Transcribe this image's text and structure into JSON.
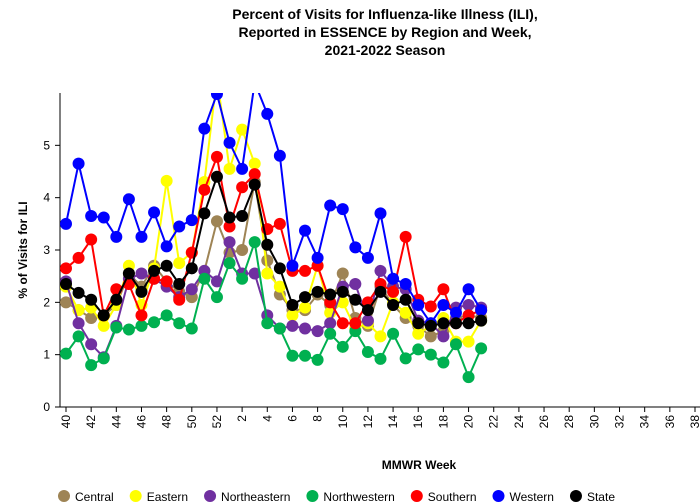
{
  "chart_data": {
    "type": "line",
    "title": [
      "Percent of Visits for Influenza-like Illness (ILI),",
      "Reported in ESSENCE by Region and Week,",
      "2021-2022 Season"
    ],
    "xlabel": "MMWR Week",
    "ylabel": "% of Visits for ILI",
    "categories": [
      "40",
      null,
      "42",
      null,
      "44",
      null,
      "46",
      null,
      "48",
      null,
      "50",
      null,
      "52",
      null,
      "2",
      null,
      "4",
      null,
      "6",
      null,
      "8",
      null,
      "10",
      null,
      "12",
      null,
      "14",
      null,
      "16",
      null,
      "18",
      null,
      "20",
      null,
      "22",
      null,
      "24",
      null,
      "26",
      null,
      "28",
      null,
      "30",
      null,
      "32",
      null,
      "34",
      null,
      "36",
      null,
      "38"
    ],
    "ylim": [
      0,
      6
    ],
    "yticks": [
      0,
      1,
      2,
      3,
      4,
      5
    ],
    "series": [
      {
        "name": "Central",
        "color": "#9e8455",
        "values": [
          2.0,
          1.85,
          1.7,
          1.75,
          1.95,
          2.55,
          2.3,
          2.7,
          2.4,
          2.2,
          2.1,
          2.6,
          3.55,
          2.95,
          3.0,
          4.3,
          2.8,
          2.15,
          1.85,
          1.85,
          2.15,
          1.95,
          2.55,
          1.7,
          1.55,
          2.3,
          1.95,
          1.7,
          1.55,
          1.35,
          1.45,
          1.7,
          1.75,
          1.7,
          null,
          null,
          null,
          null,
          null,
          null,
          null,
          null,
          null,
          null,
          null,
          null,
          null,
          null,
          null,
          null,
          null
        ]
      },
      {
        "name": "Eastern",
        "color": "#ffff00",
        "values": [
          2.3,
          1.85,
          1.9,
          1.55,
          1.95,
          2.7,
          1.95,
          2.65,
          4.32,
          2.75,
          2.95,
          4.3,
          6.3,
          4.55,
          5.3,
          4.65,
          2.55,
          2.3,
          1.75,
          1.9,
          2.7,
          1.8,
          2.0,
          1.5,
          1.6,
          1.35,
          2.0,
          1.8,
          1.4,
          1.55,
          1.7,
          1.25,
          1.25,
          1.65,
          null,
          null,
          null,
          null,
          null,
          null,
          null,
          null,
          null,
          null,
          null,
          null,
          null,
          null,
          null,
          null,
          null
        ]
      },
      {
        "name": "Northeastern",
        "color": "#7030a0",
        "values": [
          2.4,
          1.6,
          1.2,
          0.95,
          1.55,
          2.45,
          2.55,
          2.45,
          2.3,
          2.1,
          2.25,
          2.6,
          2.4,
          3.15,
          2.55,
          2.55,
          1.75,
          1.5,
          1.55,
          1.5,
          1.45,
          1.6,
          2.3,
          2.35,
          1.65,
          2.6,
          2.3,
          2.25,
          1.65,
          1.6,
          1.35,
          1.9,
          1.95,
          1.9,
          null,
          null,
          null,
          null,
          null,
          null,
          null,
          null,
          null,
          null,
          null,
          null,
          null,
          null,
          null,
          null,
          null
        ]
      },
      {
        "name": "Northwestern",
        "color": "#00b050",
        "values": [
          1.02,
          1.35,
          0.8,
          0.93,
          1.52,
          1.48,
          1.55,
          1.62,
          1.75,
          1.6,
          1.5,
          2.45,
          2.1,
          2.75,
          2.45,
          3.15,
          1.6,
          1.5,
          0.98,
          0.98,
          0.9,
          1.4,
          1.15,
          1.45,
          1.05,
          0.92,
          1.4,
          0.93,
          1.1,
          1.0,
          0.85,
          1.2,
          0.57,
          1.12,
          null,
          null,
          null,
          null,
          null,
          null,
          null,
          null,
          null,
          null,
          null,
          null,
          null,
          null,
          null,
          null,
          null
        ]
      },
      {
        "name": "Southern",
        "color": "#ff0000",
        "values": [
          2.65,
          2.85,
          3.2,
          1.75,
          2.25,
          2.35,
          1.75,
          2.45,
          2.4,
          2.05,
          2.95,
          4.15,
          4.78,
          3.45,
          4.2,
          4.45,
          3.4,
          3.5,
          2.6,
          2.6,
          2.7,
          2.0,
          1.6,
          1.6,
          2.0,
          2.35,
          2.2,
          3.25,
          2.05,
          1.92,
          2.25,
          1.6,
          1.75,
          1.85,
          null,
          null,
          null,
          null,
          null,
          null,
          null,
          null,
          null,
          null,
          null,
          null,
          null,
          null,
          null,
          null,
          null
        ]
      },
      {
        "name": "Western",
        "color": "#0000ff",
        "values": [
          3.5,
          4.65,
          3.65,
          3.62,
          3.25,
          3.97,
          3.25,
          3.72,
          3.07,
          3.45,
          3.57,
          5.32,
          5.98,
          5.05,
          4.55,
          6.2,
          5.6,
          4.8,
          2.7,
          3.37,
          2.85,
          3.85,
          3.78,
          3.05,
          2.85,
          3.7,
          2.45,
          2.35,
          1.95,
          1.6,
          1.95,
          1.8,
          2.25,
          1.85,
          null,
          null,
          null,
          null,
          null,
          null,
          null,
          null,
          null,
          null,
          null,
          null,
          null,
          null,
          null,
          null,
          null
        ]
      },
      {
        "name": "State",
        "color": "#000000",
        "values": [
          2.35,
          2.18,
          2.05,
          1.75,
          2.05,
          2.55,
          2.2,
          2.6,
          2.7,
          2.35,
          2.65,
          3.7,
          4.4,
          3.62,
          3.65,
          4.25,
          3.1,
          2.65,
          1.95,
          2.1,
          2.2,
          2.15,
          2.2,
          2.05,
          1.85,
          2.2,
          1.95,
          2.05,
          1.6,
          1.55,
          1.6,
          1.6,
          1.6,
          1.65,
          null,
          null,
          null,
          null,
          null,
          null,
          null,
          null,
          null,
          null,
          null,
          null,
          null,
          null,
          null,
          null,
          null
        ]
      }
    ]
  }
}
